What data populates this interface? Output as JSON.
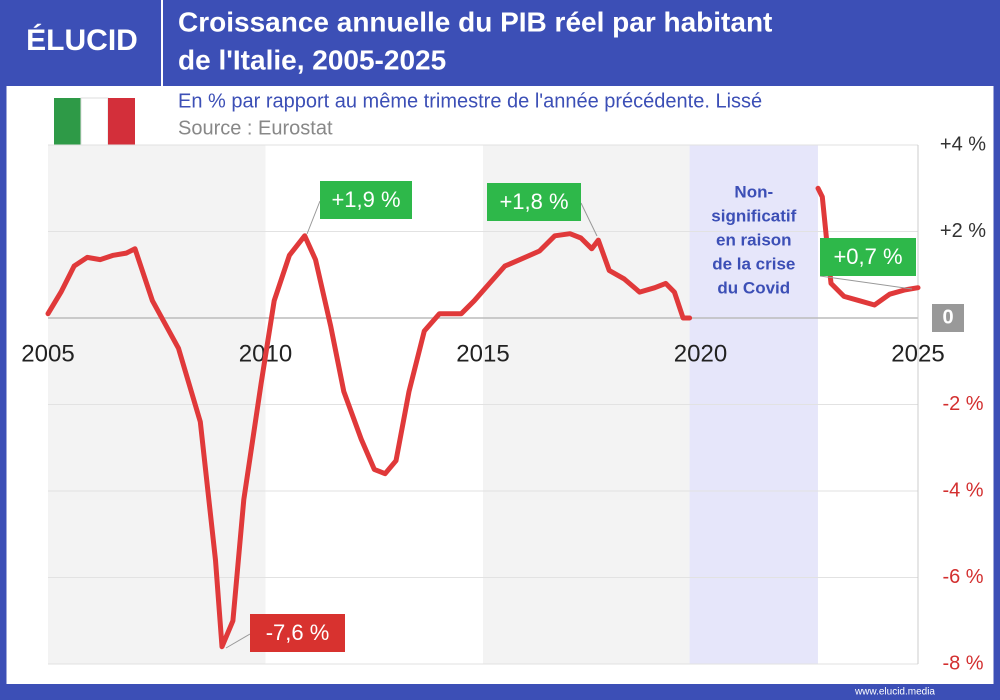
{
  "header": {
    "logo": "ÉLUCID",
    "footer": "www.elucid.media"
  },
  "chart_data": {
    "type": "line",
    "title": [
      "Croissance annuelle du PIB réel par habitant",
      "de l'Italie, 2005-2025"
    ],
    "subtitle": "En % par rapport au même trimestre de l'année précédente. Lissé",
    "source": "Source : Eurostat",
    "color": "#e0393a",
    "x": [
      2005.0,
      2005.3,
      2005.6,
      2005.9,
      2006.2,
      2006.5,
      2006.8,
      2007.0,
      2007.4,
      2008.0,
      2008.5,
      2008.85,
      2009.0,
      2009.25,
      2009.5,
      2009.9,
      2010.2,
      2010.55,
      2010.9,
      2011.15,
      2011.5,
      2011.8,
      2012.2,
      2012.5,
      2012.75,
      2013.0,
      2013.3,
      2013.65,
      2014.0,
      2014.5,
      2014.8,
      2015.15,
      2015.5,
      2015.85,
      2016.3,
      2016.65,
      2017.0,
      2017.25,
      2017.5,
      2017.65,
      2017.9,
      2018.25,
      2018.6,
      2018.95,
      2019.2,
      2019.4,
      2019.6,
      2019.75,
      2021.0,
      2022.7,
      2022.8,
      2023.0,
      2023.3,
      2023.65,
      2024.0,
      2024.35,
      2024.7,
      2025.0
    ],
    "values": [
      0.1,
      0.6,
      1.2,
      1.4,
      1.35,
      1.45,
      1.5,
      1.6,
      0.4,
      -0.7,
      -2.4,
      -5.6,
      -7.6,
      -7.0,
      -4.2,
      -1.5,
      0.4,
      1.45,
      1.9,
      1.35,
      -0.2,
      -1.7,
      -2.8,
      -3.5,
      -3.6,
      -3.3,
      -1.7,
      -0.3,
      0.1,
      0.1,
      0.4,
      0.8,
      1.2,
      1.35,
      1.55,
      1.9,
      1.95,
      1.85,
      1.6,
      1.8,
      1.1,
      0.9,
      0.6,
      0.7,
      0.8,
      0.6,
      0.0,
      0.0,
      null,
      3.0,
      2.8,
      0.8,
      0.5,
      0.4,
      0.3,
      0.55,
      0.65,
      0.7
    ],
    "xlim": [
      2005,
      2025
    ],
    "xticks": [
      2005,
      2010,
      2015,
      2020,
      2025
    ],
    "ylim": [
      -8,
      4
    ],
    "yticks": [
      {
        "value": 4,
        "label": "+4 %"
      },
      {
        "value": 2,
        "label": "+2 %"
      },
      0,
      {
        "value": -2,
        "label": "-2 %"
      },
      {
        "value": -4,
        "label": "-4 %"
      },
      {
        "value": -6,
        "label": "-6 %"
      },
      {
        "value": -8,
        "label": "-8 %"
      }
    ],
    "grid": true,
    "shaded_span": [
      2019.75,
      2022.7
    ],
    "shaded_label": [
      "Non-",
      "significatif",
      "en raison",
      "de la crise",
      "du Covid"
    ],
    "annotations": [
      "+1,9 %",
      "+1,8 %",
      "-7,6 %",
      "+0,7 %"
    ]
  }
}
